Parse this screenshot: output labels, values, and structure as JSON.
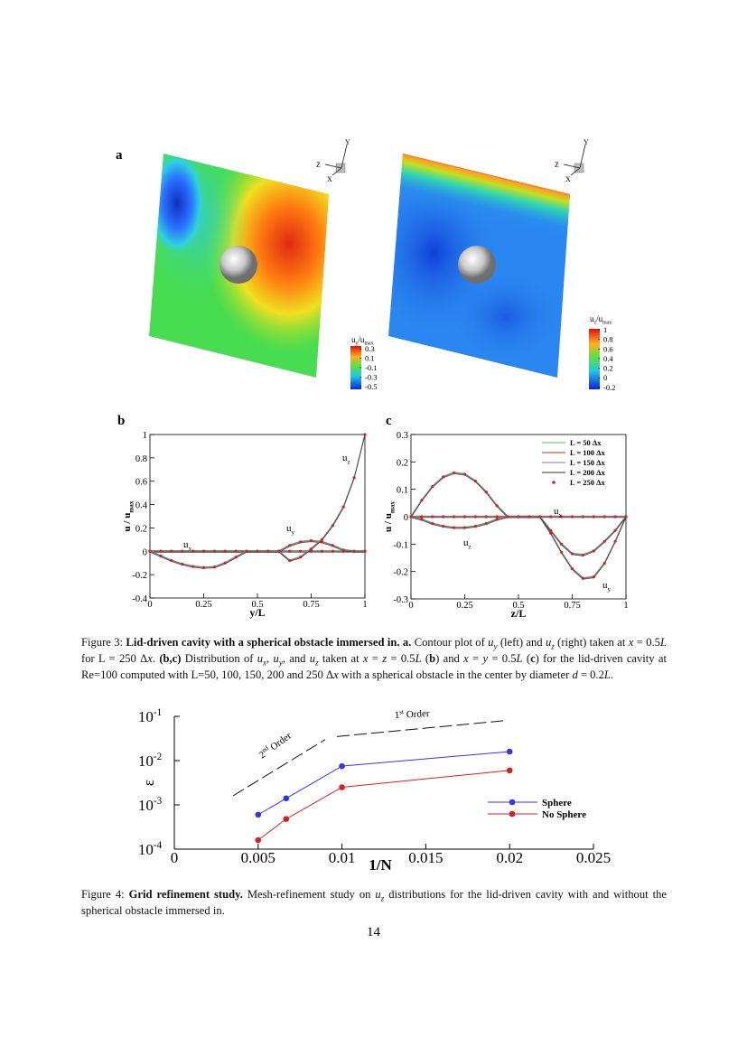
{
  "figure3": {
    "panel_a": {
      "label": "a",
      "triads": [
        [
          "Y",
          "Z",
          "X"
        ],
        [
          "Y",
          "Z",
          "X"
        ]
      ],
      "colorbars": [
        {
          "title": [
            {
              "text": "u"
            },
            {
              "text": "y",
              "style": "sub"
            },
            {
              "text": "/u"
            },
            {
              "text": "max",
              "style": "sub"
            }
          ],
          "ticks": [
            0.3,
            0.1,
            -0.1,
            -0.3,
            -0.5
          ],
          "lim": [
            -0.56,
            0.36
          ]
        },
        {
          "title": [
            {
              "text": "u"
            },
            {
              "text": "z",
              "style": "sub"
            },
            {
              "text": "/u"
            },
            {
              "text": "max",
              "style": "sub"
            }
          ],
          "ticks": [
            1,
            0.8,
            0.6,
            0.4,
            0.2,
            0,
            -0.2
          ],
          "lim": [
            -0.24,
            1.02
          ]
        }
      ]
    },
    "panel_b": {
      "label": "b",
      "type": "line",
      "x_label": "y/L",
      "y_label": [
        {
          "text": "u / u"
        },
        {
          "text": "max",
          "style": "sub"
        }
      ],
      "xlim": [
        0,
        1
      ],
      "ylim": [
        -0.4,
        1
      ],
      "xticks": [
        0,
        0.25,
        0.5,
        0.75,
        1
      ],
      "yticks": [
        -0.4,
        -0.2,
        0,
        0.2,
        0.4,
        0.6,
        0.8,
        1
      ],
      "x": [
        0,
        0.05,
        0.1,
        0.15,
        0.2,
        0.25,
        0.3,
        0.35,
        0.4,
        0.45,
        0.5,
        0.55,
        0.6,
        0.65,
        0.7,
        0.75,
        0.8,
        0.85,
        0.9,
        0.95,
        1
      ],
      "series": [
        {
          "name": [
            {
              "text": "u"
            },
            {
              "text": "x",
              "style": "sub"
            }
          ],
          "values": [
            0,
            0,
            0,
            0,
            0,
            0,
            0,
            0,
            0,
            0,
            0,
            0,
            0,
            0,
            0,
            0,
            0,
            0,
            0,
            0,
            0
          ]
        },
        {
          "name": [
            {
              "text": "u"
            },
            {
              "text": "y",
              "style": "sub"
            }
          ],
          "values": [
            0,
            0,
            0,
            0,
            0,
            0,
            0,
            0,
            0,
            0,
            0,
            0,
            0,
            0.05,
            0.08,
            0.09,
            0.08,
            0.05,
            0.01,
            0,
            0
          ]
        },
        {
          "name": [
            {
              "text": "u"
            },
            {
              "text": "z",
              "style": "sub"
            }
          ],
          "values": [
            0,
            -0.04,
            -0.08,
            -0.11,
            -0.13,
            -0.14,
            -0.135,
            -0.1,
            -0.05,
            0,
            0,
            0,
            0,
            -0.08,
            -0.05,
            0.02,
            0.1,
            0.22,
            0.38,
            0.63,
            1
          ]
        }
      ]
    },
    "panel_c": {
      "label": "c",
      "type": "line",
      "x_label": "z/L",
      "y_label": [
        {
          "text": "u / u"
        },
        {
          "text": "max",
          "style": "sub"
        }
      ],
      "xlim": [
        0,
        1
      ],
      "ylim": [
        -0.3,
        0.3
      ],
      "xticks": [
        0,
        0.25,
        0.5,
        0.75,
        1
      ],
      "yticks": [
        -0.3,
        -0.2,
        -0.1,
        0,
        0.1,
        0.2,
        0.3
      ],
      "x": [
        0,
        0.05,
        0.1,
        0.15,
        0.2,
        0.25,
        0.3,
        0.35,
        0.4,
        0.45,
        0.5,
        0.55,
        0.6,
        0.65,
        0.7,
        0.75,
        0.8,
        0.85,
        0.9,
        0.95,
        1
      ],
      "series": [
        {
          "name": [
            {
              "text": "u"
            },
            {
              "text": "x",
              "style": "sub"
            }
          ],
          "values": [
            0,
            0,
            0,
            0,
            0,
            0,
            0,
            0,
            0,
            0,
            0,
            0,
            0,
            0,
            0,
            0,
            0,
            0,
            0,
            0,
            0
          ]
        },
        {
          "name": [
            {
              "text": "u"
            },
            {
              "text": "y",
              "style": "sub"
            }
          ],
          "values": [
            0,
            0.06,
            0.11,
            0.145,
            0.16,
            0.155,
            0.13,
            0.09,
            0.04,
            0,
            0,
            0,
            0,
            -0.06,
            -0.13,
            -0.19,
            -0.225,
            -0.22,
            -0.17,
            -0.09,
            0
          ]
        },
        {
          "name": [
            {
              "text": "u"
            },
            {
              "text": "z",
              "style": "sub"
            }
          ],
          "values": [
            0,
            -0.01,
            -0.025,
            -0.035,
            -0.04,
            -0.04,
            -0.035,
            -0.025,
            -0.01,
            0,
            0,
            0,
            0,
            -0.05,
            -0.1,
            -0.135,
            -0.14,
            -0.125,
            -0.09,
            -0.05,
            0
          ]
        }
      ],
      "legend": [
        {
          "name": "L = 50   Δx",
          "color": "#44cc44",
          "style": "line"
        },
        {
          "name": "L = 100 Δx",
          "color": "#b03030",
          "style": "line"
        },
        {
          "name": "L = 150 Δx",
          "color": "#7777ee",
          "style": "line"
        },
        {
          "name": "L = 200 Δx",
          "color": "#333333",
          "style": "line"
        },
        {
          "name": "L = 250 Δx",
          "color": "#dd1f1f",
          "style": "marker"
        }
      ]
    },
    "caption": [
      {
        "text": "Figure 3: "
      },
      {
        "text": "Lid-driven cavity with a spherical obstacle immersed in. a.",
        "style": "b"
      },
      {
        "text": " Contour plot of "
      },
      {
        "text": "u",
        "style": "i"
      },
      {
        "text": "y",
        "style": "sub"
      },
      {
        "text": " (left) and "
      },
      {
        "text": "u",
        "style": "i"
      },
      {
        "text": "z",
        "style": "sub"
      },
      {
        "text": " (right) taken at "
      },
      {
        "text": "x",
        "style": "i"
      },
      {
        "text": " = 0.5"
      },
      {
        "text": "L",
        "style": "i"
      },
      {
        "text": " for L = 250 Δ"
      },
      {
        "text": "x",
        "style": "i"
      },
      {
        "text": ". "
      },
      {
        "text": "(b,c)",
        "style": "b"
      },
      {
        "text": " Distribution of "
      },
      {
        "text": "u",
        "style": "i"
      },
      {
        "text": "x",
        "style": "sub"
      },
      {
        "text": ", "
      },
      {
        "text": "u",
        "style": "i"
      },
      {
        "text": "y",
        "style": "sub"
      },
      {
        "text": ", and "
      },
      {
        "text": "u",
        "style": "i"
      },
      {
        "text": "z",
        "style": "sub"
      },
      {
        "text": " taken at "
      },
      {
        "text": "x",
        "style": "i"
      },
      {
        "text": " = "
      },
      {
        "text": "z",
        "style": "i"
      },
      {
        "text": " = 0.5"
      },
      {
        "text": "L",
        "style": "i"
      },
      {
        "text": " ("
      },
      {
        "text": "b",
        "style": "b"
      },
      {
        "text": ") and "
      },
      {
        "text": "x",
        "style": "i"
      },
      {
        "text": " = "
      },
      {
        "text": "y",
        "style": "i"
      },
      {
        "text": " = 0.5"
      },
      {
        "text": "L",
        "style": "i"
      },
      {
        "text": " ("
      },
      {
        "text": "c",
        "style": "b"
      },
      {
        "text": ") for the lid-driven cavity at Re=100 computed with L=50, 100, 150, 200 and 250 Δ"
      },
      {
        "text": "x",
        "style": "i"
      },
      {
        "text": " with a spherical obstacle in the center by diameter "
      },
      {
        "text": "d",
        "style": "i"
      },
      {
        "text": " = 0.2"
      },
      {
        "text": "L",
        "style": "i"
      },
      {
        "text": "."
      }
    ]
  },
  "figure4": {
    "chart": {
      "type": "line",
      "log_y": true,
      "x_label": "1/N",
      "y_label": "ε",
      "xlim": [
        0,
        0.025
      ],
      "ylim": [
        0.0001,
        0.1
      ],
      "xticks": [
        0,
        0.005,
        0.01,
        0.015,
        0.02,
        0.025
      ],
      "yticks": [
        {
          "value": 0.1,
          "label": [
            {
              "text": "10"
            },
            {
              "text": "-1",
              "style": "sup"
            }
          ]
        },
        {
          "value": 0.01,
          "label": [
            {
              "text": "10"
            },
            {
              "text": "-2",
              "style": "sup"
            }
          ]
        },
        {
          "value": 0.001,
          "label": [
            {
              "text": "10"
            },
            {
              "text": "-3",
              "style": "sup"
            }
          ]
        },
        {
          "value": 0.0001,
          "label": [
            {
              "text": "10"
            },
            {
              "text": "-4",
              "style": "sup"
            }
          ]
        }
      ],
      "series": [
        {
          "name": "Sphere",
          "color": "#3535e8",
          "x": [
            0.005,
            0.00667,
            0.01,
            0.02
          ],
          "values": [
            0.0006,
            0.0014,
            0.0075,
            0.016
          ]
        },
        {
          "name": "No Sphere",
          "color": "#d42020",
          "x": [
            0.005,
            0.00667,
            0.01,
            0.02
          ],
          "values": [
            0.00016,
            0.00048,
            0.0025,
            0.006
          ]
        }
      ],
      "legend": "right",
      "reference_lines": [
        {
          "label": [
            {
              "text": "2"
            },
            {
              "text": "nd",
              "style": "sup"
            },
            {
              "text": " Order"
            }
          ],
          "x": [
            0.0035,
            0.009
          ],
          "values": [
            0.0016,
            0.03
          ]
        },
        {
          "label": [
            {
              "text": "1"
            },
            {
              "text": "st",
              "style": "sup"
            },
            {
              "text": " Order"
            }
          ],
          "x": [
            0.0097,
            0.0197
          ],
          "values": [
            0.035,
            0.08
          ]
        }
      ]
    },
    "caption": [
      {
        "text": "Figure 4: "
      },
      {
        "text": "Grid refinement study.",
        "style": "b"
      },
      {
        "text": " Mesh-refinement study on "
      },
      {
        "text": "u",
        "style": "i"
      },
      {
        "text": "z",
        "style": "sub"
      },
      {
        "text": " distributions for the lid-driven cavity with and without the spherical obstacle immersed in."
      }
    ]
  },
  "page_number": "14"
}
